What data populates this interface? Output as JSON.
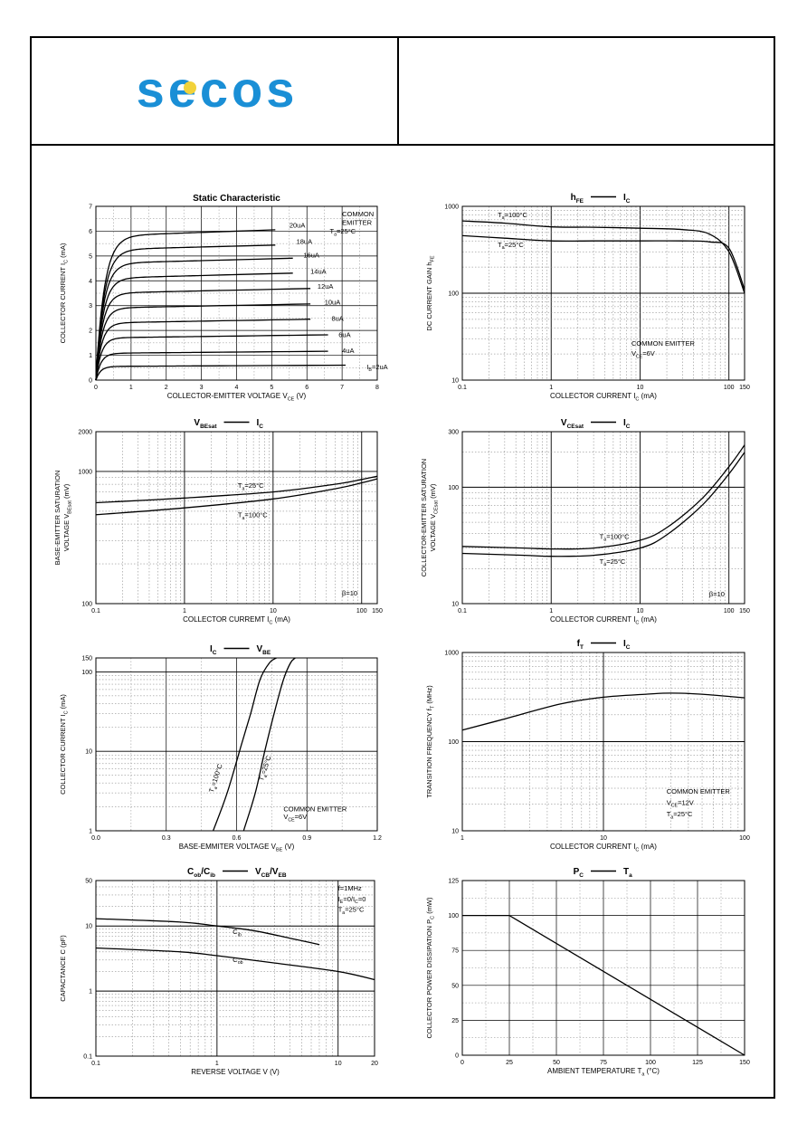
{
  "header": {
    "logo_text": "secos",
    "logo_color": "#1a8fd6",
    "logo_accent": "#f2d23a"
  },
  "chart_data": [
    {
      "id": "static",
      "type": "line",
      "title": "Static Characteristic",
      "xlabel": "COLLECTOR-EMITTER VOLTAGE",
      "xsym": "V",
      "xsub": "CE",
      "xunit": "(V)",
      "ylabel": "COLLECTOR CURRENT",
      "ysym": "I",
      "ysub": "C",
      "yunit": "(mA)",
      "xscale": "linear",
      "yscale": "linear",
      "xlim": [
        0,
        8
      ],
      "ylim": [
        0,
        7
      ],
      "xticks": [
        0,
        1,
        2,
        3,
        4,
        5,
        6,
        7,
        8
      ],
      "yticks": [
        0,
        1,
        2,
        3,
        4,
        5,
        6,
        7
      ],
      "annotations": [
        {
          "text": "COMMON",
          "x": 7.0,
          "y": 6.6
        },
        {
          "text": "EMITTER",
          "x": 7.0,
          "y": 6.25
        },
        {
          "text": "T",
          "sub": "a",
          "post": "=25°C",
          "x": 6.65,
          "y": 5.9
        }
      ],
      "series": [
        {
          "label": "I",
          "sub": "B",
          "post": "=2uA",
          "sat": 0.55,
          "v0": 0.52,
          "v1": 0.58,
          "lx": 7.7,
          "ly": 0.55
        },
        {
          "label": "4uA",
          "sat": 1.08,
          "v0": 1.05,
          "v1": 1.15,
          "lx": 7.0,
          "ly": 1.2
        },
        {
          "label": "6uA",
          "sat": 1.7,
          "v0": 1.65,
          "v1": 1.8,
          "lx": 6.9,
          "ly": 1.85
        },
        {
          "label": "8uA",
          "sat": 2.3,
          "v0": 2.25,
          "v1": 2.45,
          "lx": 6.7,
          "ly": 2.5
        },
        {
          "label": "10uA",
          "sat": 2.9,
          "v0": 2.88,
          "v1": 3.1,
          "lx": 6.5,
          "ly": 3.15
        },
        {
          "label": "12uA",
          "sat": 3.5,
          "v0": 3.5,
          "v1": 3.75,
          "lx": 6.3,
          "ly": 3.8
        },
        {
          "label": "14uA",
          "sat": 4.1,
          "v0": 4.1,
          "v1": 4.4,
          "lx": 6.1,
          "ly": 4.4
        },
        {
          "label": "16uA",
          "sat": 4.7,
          "v0": 4.7,
          "v1": 5.0,
          "lx": 5.9,
          "ly": 5.05
        },
        {
          "label": "18uA",
          "sat": 5.25,
          "v0": 5.3,
          "v1": 5.6,
          "lx": 5.7,
          "ly": 5.6
        },
        {
          "label": "20uA",
          "sat": 5.8,
          "v0": 5.8,
          "v1": 6.2,
          "lx": 5.5,
          "ly": 6.25
        }
      ]
    },
    {
      "id": "hfe",
      "type": "line",
      "title": "h",
      "title_sub": "FE",
      "title_dash": true,
      "title2": "I",
      "title2_sub": "C",
      "xlabel": "COLLECTOR CURRENT",
      "xsym": "I",
      "xsub": "C",
      "xunit": "(mA)",
      "ylabel": "DC CURRENT GAIN",
      "ysym": "h",
      "ysub": "FE",
      "yunit": "",
      "xscale": "log",
      "yscale": "log",
      "xlim": [
        0.1,
        150
      ],
      "ylim": [
        10,
        1000
      ],
      "xticks": [
        0.1,
        1,
        10,
        100,
        150
      ],
      "xtick_labels": [
        "0.1",
        "1",
        "10",
        "100",
        "150"
      ],
      "yticks": [
        10,
        100,
        1000
      ],
      "ytick_labels": [
        "10",
        "100",
        "1000"
      ],
      "annotations": [
        {
          "text": "T",
          "sub": "a",
          "post": "=100°C",
          "x": 0.25,
          "y": 750
        },
        {
          "text": "T",
          "sub": "a",
          "post": "=25°C",
          "x": 0.25,
          "y": 340
        },
        {
          "text": "COMMON EMITTER",
          "x": 8,
          "y": 25
        },
        {
          "text": "V",
          "sub": "CE",
          "post": "=6V",
          "x": 8,
          "y": 19
        }
      ],
      "series": [
        {
          "name": "T=100°C",
          "points": [
            [
              0.1,
              680
            ],
            [
              0.3,
              640
            ],
            [
              1,
              580
            ],
            [
              3,
              575
            ],
            [
              10,
              560
            ],
            [
              30,
              540
            ],
            [
              60,
              480
            ],
            [
              100,
              300
            ],
            [
              150,
              100
            ]
          ]
        },
        {
          "name": "T=25°C",
          "points": [
            [
              0.1,
              460
            ],
            [
              0.3,
              430
            ],
            [
              1,
              400
            ],
            [
              3,
              400
            ],
            [
              10,
              400
            ],
            [
              30,
              400
            ],
            [
              60,
              390
            ],
            [
              100,
              330
            ],
            [
              150,
              110
            ]
          ]
        }
      ]
    },
    {
      "id": "vbesat",
      "type": "line",
      "title": "V",
      "title_sub": "BEsat",
      "title_dash": true,
      "title2": "I",
      "title2_sub": "C",
      "xlabel": "COLLECTOR CURREMT",
      "xsym": "I",
      "xsub": "C",
      "xunit": "(mA)",
      "ylabel": "BASE-EMITTER SATURATION",
      "ylabel2": "VOLTAGE",
      "ysym": "V",
      "ysub": "BEsat",
      "yunit": "(mV)",
      "xscale": "log",
      "yscale": "log",
      "xlim": [
        0.1,
        150
      ],
      "ylim": [
        100,
        2000
      ],
      "xticks": [
        0.1,
        1,
        10,
        100,
        150
      ],
      "xtick_labels": [
        "0.1",
        "1",
        "10",
        "100",
        "150"
      ],
      "yticks": [
        100,
        1000,
        2000
      ],
      "ytick_labels": [
        "100",
        "1000",
        "2000"
      ],
      "annotations": [
        {
          "text": "T",
          "sub": "a",
          "post": "=25°C",
          "x": 4,
          "y": 750
        },
        {
          "text": "T",
          "sub": "a",
          "post": "=100°C",
          "x": 4,
          "y": 450
        },
        {
          "text": "β=10",
          "x": 60,
          "y": 115
        }
      ],
      "series": [
        {
          "name": "T=25°C",
          "points": [
            [
              0.1,
              580
            ],
            [
              1,
              630
            ],
            [
              10,
              700
            ],
            [
              50,
              800
            ],
            [
              100,
              870
            ],
            [
              150,
              920
            ]
          ]
        },
        {
          "name": "T=100°C",
          "points": [
            [
              0.1,
              470
            ],
            [
              1,
              530
            ],
            [
              10,
              620
            ],
            [
              50,
              740
            ],
            [
              100,
              820
            ],
            [
              150,
              880
            ]
          ]
        }
      ]
    },
    {
      "id": "vcesat",
      "type": "line",
      "title": "V",
      "title_sub": "CEsat",
      "title_dash": true,
      "title2": "I",
      "title2_sub": "C",
      "xlabel": "COLLECTOR CURRENT",
      "xsym": "I",
      "xsub": "C",
      "xunit": "(mA)",
      "ylabel": "COLLECTOR-EMITTER SATURATION",
      "ylabel2": "VOLTAGE",
      "ysym": "V",
      "ysub": "CEsat",
      "yunit": "(mV)",
      "xscale": "log",
      "yscale": "log",
      "xlim": [
        0.1,
        150
      ],
      "ylim": [
        10,
        300
      ],
      "xticks": [
        0.1,
        1,
        10,
        100,
        150
      ],
      "xtick_labels": [
        "0.1",
        "1",
        "10",
        "100",
        "150"
      ],
      "yticks": [
        10,
        100,
        300
      ],
      "ytick_labels": [
        "10",
        "100",
        "300"
      ],
      "annotations": [
        {
          "text": "T",
          "sub": "a",
          "post": "=100°C",
          "x": 3.5,
          "y": 36
        },
        {
          "text": "T",
          "sub": "a",
          "post": "=25°C",
          "x": 3.5,
          "y": 22
        },
        {
          "text": "β=10",
          "x": 60,
          "y": 11.5
        }
      ],
      "series": [
        {
          "name": "T=100°C",
          "points": [
            [
              0.1,
              31
            ],
            [
              0.5,
              30
            ],
            [
              1,
              29.5
            ],
            [
              3,
              30
            ],
            [
              10,
              35
            ],
            [
              20,
              45
            ],
            [
              50,
              80
            ],
            [
              100,
              150
            ],
            [
              150,
              230
            ]
          ]
        },
        {
          "name": "T=25°C",
          "points": [
            [
              0.1,
              27
            ],
            [
              0.5,
              26
            ],
            [
              1,
              25.5
            ],
            [
              3,
              26
            ],
            [
              10,
              30
            ],
            [
              20,
              39
            ],
            [
              50,
              70
            ],
            [
              100,
              130
            ],
            [
              150,
              200
            ]
          ]
        }
      ]
    },
    {
      "id": "icvbe",
      "type": "line",
      "title": "I",
      "title_sub": "C",
      "title_dash": true,
      "title2": "V",
      "title2_sub": "BE",
      "xlabel": "BASE-EMMITER VOLTAGE",
      "xsym": "V",
      "xsub": "BE",
      "xunit": "(V)",
      "ylabel": "COLLECTOR CURRENT",
      "ysym": "I",
      "ysub": "C",
      "yunit": "(mA)",
      "xscale": "linear",
      "yscale": "log",
      "xlim": [
        0,
        1.2
      ],
      "ylim": [
        1,
        150
      ],
      "xticks": [
        0,
        0.3,
        0.6,
        0.9,
        1.2
      ],
      "xtick_labels": [
        "0.0",
        "0.3",
        "0.6",
        "0.9",
        "1.2"
      ],
      "yticks": [
        1,
        10,
        100,
        150
      ],
      "ytick_labels": [
        "1",
        "10",
        "100",
        "150"
      ],
      "annotations": [
        {
          "text": "COMMON EMITTER",
          "x": 0.8,
          "y": 1.75
        },
        {
          "text": "V",
          "sub": "CE",
          "post": "=6V",
          "x": 0.8,
          "y": 1.4
        }
      ],
      "rot_labels": [
        {
          "text": "T",
          "sub": "a",
          "post": "=100°C",
          "x": 0.52,
          "y": 4.5
        },
        {
          "text": "T",
          "sub": "a",
          "post": "=25°C",
          "x": 0.73,
          "y": 6
        }
      ],
      "series": [
        {
          "name": "T=100°C",
          "points": [
            [
              0.5,
              1
            ],
            [
              0.56,
              3
            ],
            [
              0.62,
              12
            ],
            [
              0.66,
              30
            ],
            [
              0.7,
              80
            ],
            [
              0.74,
              130
            ],
            [
              0.77,
              150
            ]
          ]
        },
        {
          "name": "T=25°C",
          "points": [
            [
              0.63,
              1
            ],
            [
              0.68,
              3
            ],
            [
              0.72,
              10
            ],
            [
              0.76,
              30
            ],
            [
              0.8,
              80
            ],
            [
              0.83,
              130
            ],
            [
              0.85,
              150
            ]
          ]
        }
      ]
    },
    {
      "id": "ft",
      "type": "line",
      "title": "f",
      "title_sub": "T",
      "title_dash": true,
      "title2": "I",
      "title2_sub": "C",
      "xlabel": "COLLECTOR CURRENT",
      "xsym": "I",
      "xsub": "C",
      "xunit": "(mA)",
      "ylabel": "TRANSITION FREQUENCY",
      "ysym": "f",
      "ysub": "T",
      "yunit": "(MHz)",
      "xscale": "log",
      "yscale": "log",
      "xlim": [
        1,
        100
      ],
      "ylim": [
        10,
        1000
      ],
      "xticks": [
        1,
        10,
        100
      ],
      "xtick_labels": [
        "1",
        "10",
        "100"
      ],
      "yticks": [
        10,
        100,
        1000
      ],
      "ytick_labels": [
        "10",
        "100",
        "1000"
      ],
      "annotations": [
        {
          "text": "COMMON EMITTER",
          "x": 28,
          "y": 26
        },
        {
          "text": "V",
          "sub": "CE",
          "post": "=12V",
          "x": 28,
          "y": 19.5
        },
        {
          "text": "T",
          "sub": "a",
          "post": "=25°C",
          "x": 28,
          "y": 14.5
        }
      ],
      "series": [
        {
          "name": "fT",
          "points": [
            [
              1,
              135
            ],
            [
              2,
              180
            ],
            [
              5,
              265
            ],
            [
              10,
              315
            ],
            [
              20,
              340
            ],
            [
              30,
              350
            ],
            [
              50,
              340
            ],
            [
              100,
              310
            ]
          ]
        }
      ]
    },
    {
      "id": "cap",
      "type": "line",
      "title": "C",
      "title_sub": "ob",
      "title_mid": "/C",
      "title_mid_sub": "ib",
      "title_dash": true,
      "title2": "V",
      "title2_sub": "CB",
      "title2_mid": "/V",
      "title2_mid_sub": "EB",
      "xlabel": "REVERSE VOLTAGE",
      "xsym": "V",
      "xsub": "",
      "xunit": "(V)",
      "ylabel": "CAPACTANCE",
      "ysym": "C",
      "ysub": "",
      "yunit": "(pF)",
      "xscale": "log",
      "yscale": "log",
      "xlim": [
        0.1,
        20
      ],
      "ylim": [
        0.1,
        50
      ],
      "xticks": [
        0.1,
        1,
        10,
        20
      ],
      "xtick_labels": [
        "0.1",
        "1",
        "10",
        "20"
      ],
      "yticks": [
        0.1,
        1,
        10,
        50
      ],
      "ytick_labels": [
        "0.1",
        "1",
        "10",
        "50"
      ],
      "annotations": [
        {
          "text": "f=1MHz",
          "x": 10,
          "y": 35
        },
        {
          "text": "I",
          "sub": "E",
          "post": "=0/I",
          "sub2": "C",
          "post2": "=0",
          "x": 10,
          "y": 24
        },
        {
          "text": "T",
          "sub": "a",
          "post": "=25°C",
          "x": 10,
          "y": 16.5
        },
        {
          "text": "C",
          "sub": "ib",
          "post": "",
          "x": 1.35,
          "y": 7.5
        },
        {
          "text": "C",
          "sub": "ob",
          "post": "",
          "x": 1.35,
          "y": 2.8
        }
      ],
      "series": [
        {
          "name": "Cib",
          "points": [
            [
              0.1,
              13
            ],
            [
              0.5,
              11.5
            ],
            [
              1,
              10
            ],
            [
              2,
              8.5
            ],
            [
              4,
              6.5
            ],
            [
              7,
              5.2
            ]
          ]
        },
        {
          "name": "Cob",
          "points": [
            [
              0.1,
              4.6
            ],
            [
              0.5,
              4
            ],
            [
              1,
              3.5
            ],
            [
              3,
              2.7
            ],
            [
              10,
              2
            ],
            [
              20,
              1.5
            ]
          ]
        }
      ]
    },
    {
      "id": "pc",
      "type": "line",
      "title": "P",
      "title_sub": "C",
      "title_dash": true,
      "title2": "T",
      "title2_sub": "a",
      "xlabel": "AMBIENT TEMPERATURE",
      "xsym": "T",
      "xsub": "a",
      "xunit": "(°C)",
      "ylabel": "COLLECTOR POWER DISSIPATION",
      "ysym": "P",
      "ysub": "C",
      "yunit": "(mW)",
      "xscale": "linear",
      "yscale": "linear",
      "xlim": [
        0,
        150
      ],
      "ylim": [
        0,
        125
      ],
      "xticks": [
        0,
        25,
        50,
        75,
        100,
        125,
        150
      ],
      "yticks": [
        0,
        25,
        50,
        75,
        100,
        125
      ],
      "annotations": [],
      "series": [
        {
          "name": "PC",
          "points": [
            [
              0,
              100
            ],
            [
              25,
              100
            ],
            [
              150,
              0
            ]
          ]
        }
      ]
    }
  ]
}
